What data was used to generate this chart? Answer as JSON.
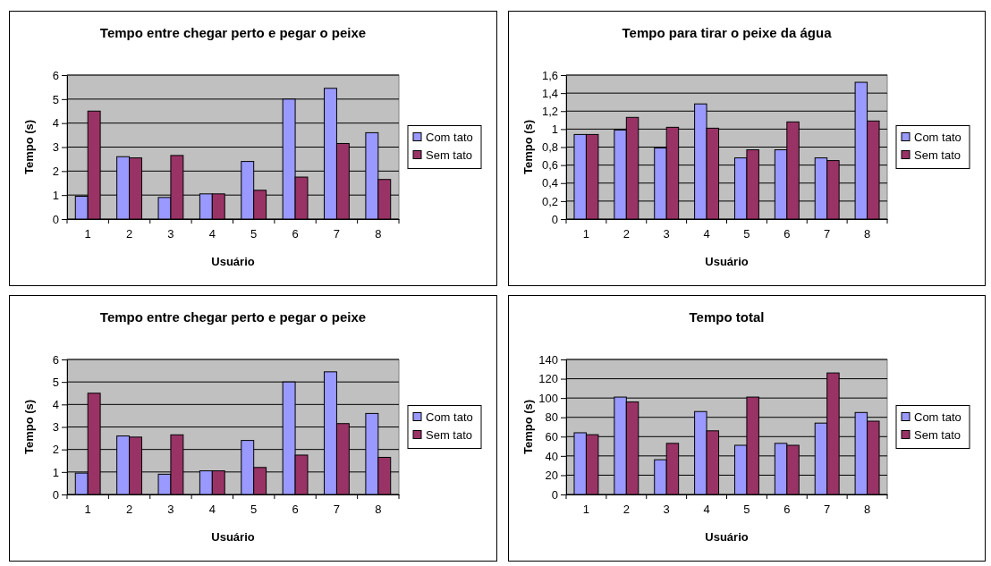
{
  "chart_data": [
    {
      "type": "bar",
      "title": "Tempo entre chegar perto e pegar o peixe",
      "xlabel": "Usuário",
      "ylabel": "Tempo (s)",
      "categories": [
        "1",
        "2",
        "3",
        "4",
        "5",
        "6",
        "7",
        "8"
      ],
      "series": [
        {
          "name": "Com tato",
          "color": "#9999ff",
          "values": [
            0.95,
            2.6,
            0.9,
            1.05,
            2.4,
            5.0,
            5.45,
            3.6
          ]
        },
        {
          "name": "Sem tato",
          "color": "#993366",
          "values": [
            4.5,
            2.55,
            2.65,
            1.05,
            1.2,
            1.75,
            3.15,
            1.65
          ]
        }
      ],
      "ylim": [
        0,
        6
      ],
      "yticks": [
        0,
        1,
        2,
        3,
        4,
        5,
        6
      ],
      "grid": "y",
      "legend": "right"
    },
    {
      "type": "bar",
      "title": "Tempo para tirar o peixe da água",
      "xlabel": "Usuário",
      "ylabel": "Tempo (s)",
      "categories": [
        "1",
        "2",
        "3",
        "4",
        "5",
        "6",
        "7",
        "8"
      ],
      "series": [
        {
          "name": "Com tato",
          "color": "#9999ff",
          "values": [
            0.94,
            0.99,
            0.79,
            1.28,
            0.68,
            0.77,
            0.68,
            1.52
          ]
        },
        {
          "name": "Sem tato",
          "color": "#993366",
          "values": [
            0.94,
            1.13,
            1.02,
            1.01,
            0.77,
            1.08,
            0.65,
            1.09
          ]
        }
      ],
      "ylim": [
        0,
        1.6
      ],
      "yticks": [
        0,
        {
          "value": 0.2,
          "label": "0,2"
        },
        {
          "value": 0.4,
          "label": "0,4"
        },
        {
          "value": 0.6,
          "label": "0,6"
        },
        {
          "value": 0.8,
          "label": "0,8"
        },
        1,
        {
          "value": 1.2,
          "label": "1,2"
        },
        {
          "value": 1.4,
          "label": "1,4"
        },
        {
          "value": 1.6,
          "label": "1,6"
        }
      ],
      "grid": "y",
      "legend": "right"
    },
    {
      "type": "bar",
      "title": "Tempo entre chegar perto e pegar o peixe",
      "xlabel": "Usuário",
      "ylabel": "Tempo (s)",
      "categories": [
        "1",
        "2",
        "3",
        "4",
        "5",
        "6",
        "7",
        "8"
      ],
      "series": [
        {
          "name": "Com tato",
          "color": "#9999ff",
          "values": [
            0.95,
            2.6,
            0.9,
            1.05,
            2.4,
            5.0,
            5.45,
            3.6
          ]
        },
        {
          "name": "Sem tato",
          "color": "#993366",
          "values": [
            4.5,
            2.55,
            2.65,
            1.05,
            1.2,
            1.75,
            3.15,
            1.65
          ]
        }
      ],
      "ylim": [
        0,
        6
      ],
      "yticks": [
        0,
        1,
        2,
        3,
        4,
        5,
        6
      ],
      "grid": "y",
      "legend": "right"
    },
    {
      "type": "bar",
      "title": "Tempo total",
      "xlabel": "Usuário",
      "ylabel": "Tempo (s)",
      "categories": [
        "1",
        "2",
        "3",
        "4",
        "5",
        "6",
        "7",
        "8"
      ],
      "series": [
        {
          "name": "Com tato",
          "color": "#9999ff",
          "values": [
            64,
            101,
            36,
            86,
            51,
            53,
            74,
            85
          ]
        },
        {
          "name": "Sem tato",
          "color": "#993366",
          "values": [
            62,
            96,
            53,
            66,
            101,
            51,
            126,
            76
          ]
        }
      ],
      "ylim": [
        0,
        140
      ],
      "yticks": [
        0,
        20,
        40,
        60,
        80,
        100,
        120,
        140
      ],
      "grid": "y",
      "legend": "right"
    }
  ]
}
